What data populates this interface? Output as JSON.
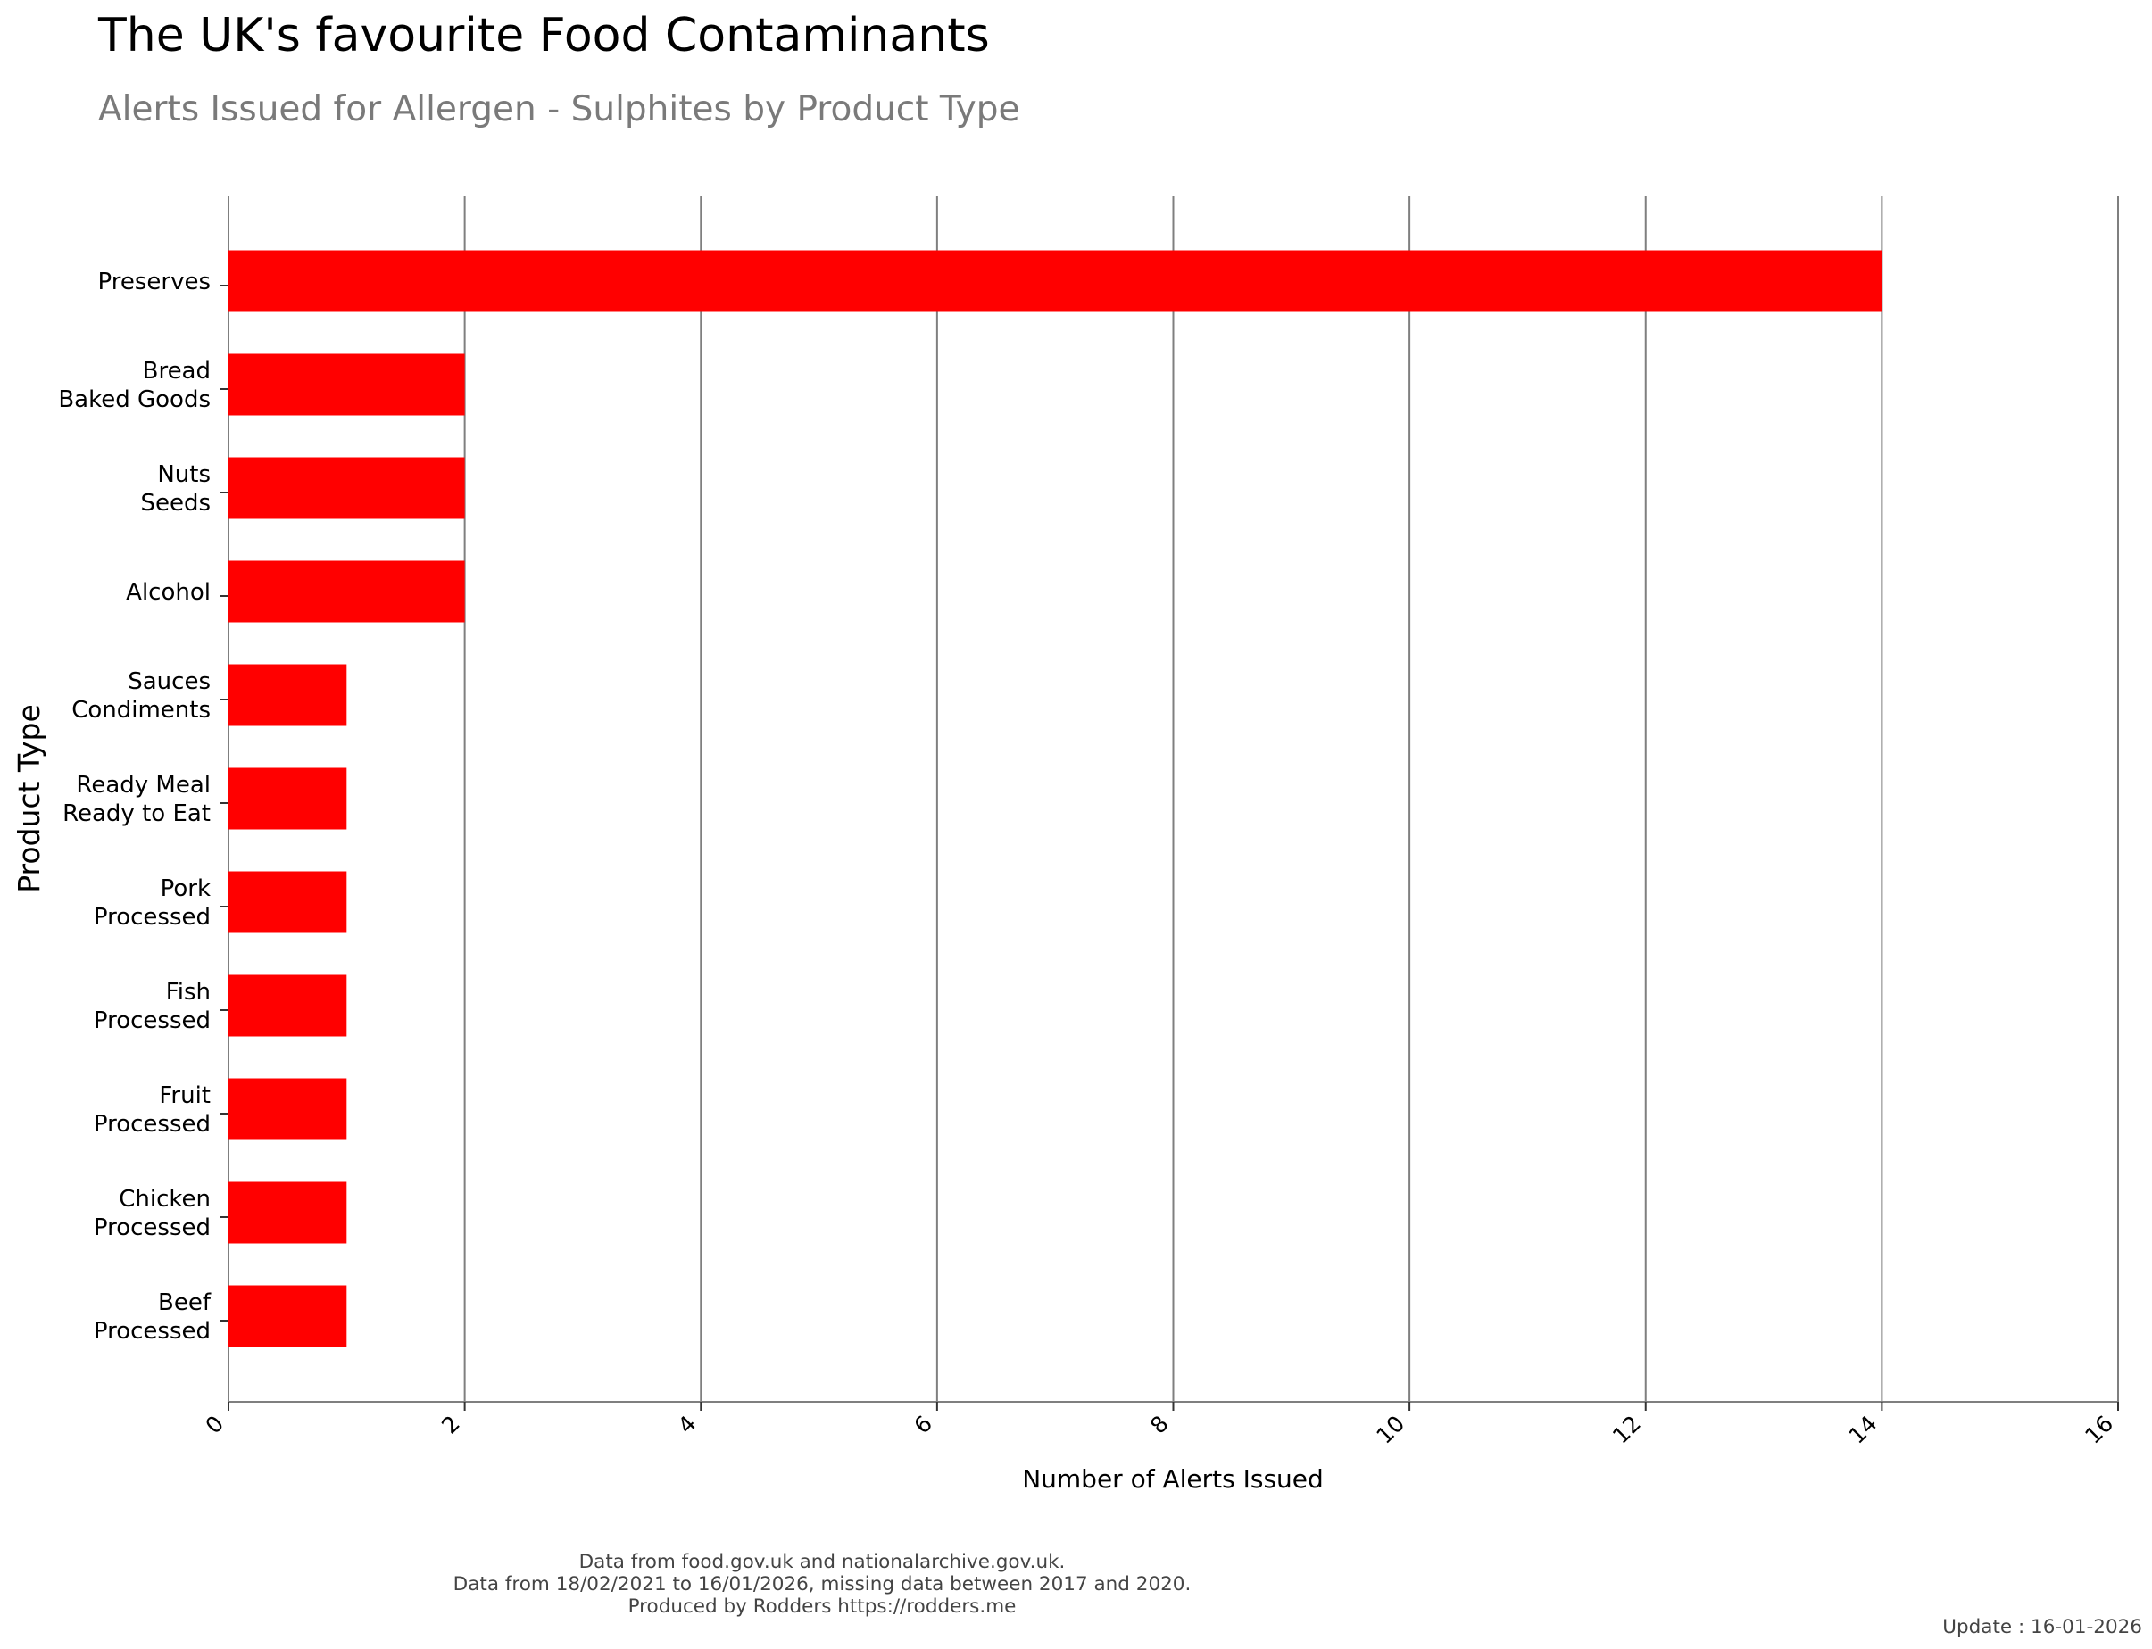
{
  "title": "The UK's favourite Food Contaminants",
  "subtitle": "Alerts Issued for Allergen - Sulphites by Product Type",
  "chart_data": {
    "type": "bar",
    "orientation": "horizontal",
    "categories": [
      [
        "Preserves"
      ],
      [
        "Bread",
        "Baked Goods"
      ],
      [
        "Nuts",
        "Seeds"
      ],
      [
        "Alcohol"
      ],
      [
        "Sauces",
        "Condiments"
      ],
      [
        "Ready Meal",
        "Ready to Eat"
      ],
      [
        "Pork",
        "Processed"
      ],
      [
        "Fish",
        "Processed"
      ],
      [
        "Fruit",
        "Processed"
      ],
      [
        "Chicken",
        "Processed"
      ],
      [
        "Beef",
        "Processed"
      ]
    ],
    "values": [
      14,
      2,
      2,
      2,
      1,
      1,
      1,
      1,
      1,
      1,
      1
    ],
    "xlabel": "Number of Alerts Issued",
    "ylabel": "Product Type",
    "xlim": [
      0,
      16
    ],
    "xticks": [
      0,
      2,
      4,
      6,
      8,
      10,
      12,
      14,
      16
    ],
    "grid": "vertical",
    "legend": "none",
    "bar_color": "#ff0000",
    "grid_color": "#7f7f7f"
  },
  "footer": {
    "lines": [
      "Data from food.gov.uk and nationalarchive.gov.uk.",
      "Data from 18/02/2021 to 16/01/2026, missing data between 2017 and 2020.",
      "Produced by Rodders https://rodders.me"
    ],
    "update": "Update : 16-01-2026"
  }
}
